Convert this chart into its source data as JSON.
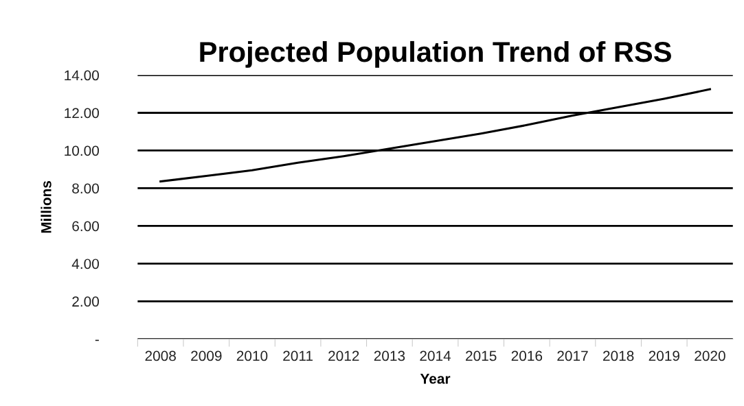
{
  "chart_data": {
    "type": "line",
    "title": "Projected Population Trend of RSS",
    "xlabel": "Year",
    "ylabel": "Millions",
    "categories": [
      "2008",
      "2009",
      "2010",
      "2011",
      "2012",
      "2013",
      "2014",
      "2015",
      "2016",
      "2017",
      "2018",
      "2019",
      "2020"
    ],
    "series": [
      {
        "color": "#000000",
        "values": [
          8.36,
          8.65,
          8.95,
          9.35,
          9.7,
          10.1,
          10.5,
          10.9,
          11.35,
          11.85,
          12.3,
          12.75,
          13.25
        ]
      }
    ],
    "ylim": [
      0,
      14
    ],
    "yticks": [
      {
        "value": 0,
        "label": "-"
      },
      {
        "value": 2,
        "label": "2.00"
      },
      {
        "value": 4,
        "label": "4.00"
      },
      {
        "value": 6,
        "label": "6.00"
      },
      {
        "value": 8,
        "label": "8.00"
      },
      {
        "value": 10,
        "label": "10.00"
      },
      {
        "value": 12,
        "label": "12.00"
      },
      {
        "value": 14,
        "label": "14.00"
      }
    ],
    "grid": "y",
    "marker": "none",
    "line_style": "solid",
    "legend": false
  }
}
